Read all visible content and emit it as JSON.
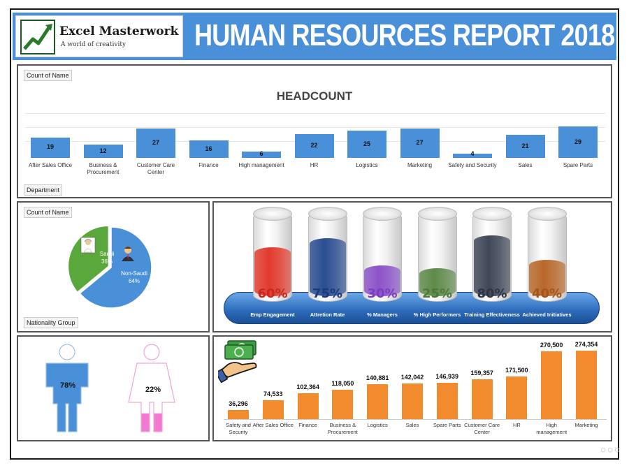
{
  "header": {
    "brand_name": "Excel Masterwork",
    "brand_tagline": "A world of creativity",
    "title": "HUMAN RESOURCES REPORT 2018",
    "logo_icon": "growth-chart-icon"
  },
  "headcount": {
    "field_label": "Count of Name",
    "axis_label": "Department",
    "chart_data": {
      "type": "bar",
      "title": "HEADCOUNT",
      "categories": [
        "After Sales Office",
        "Business & Procurement",
        "Customer Care Center",
        "Finance",
        "High management",
        "HR",
        "Logistics",
        "Marketing",
        "Safety and Security",
        "Sales",
        "Spare Parts"
      ],
      "values": [
        19,
        12,
        27,
        16,
        6,
        22,
        25,
        27,
        4,
        21,
        29
      ],
      "color": "#4a90d9"
    }
  },
  "nationality": {
    "field_label": "Count of Name",
    "axis_label": "Nationality Group",
    "chart_data": {
      "type": "pie",
      "categories": [
        "Saudi",
        "Non-Saudi"
      ],
      "values": [
        36,
        64
      ],
      "labels": [
        "36%",
        "64%"
      ],
      "colors": [
        "#5aa83c",
        "#4a90d9"
      ]
    }
  },
  "kpis": {
    "items": [
      {
        "label": "Emp Engagement",
        "value": "60%",
        "color": "#e23b2e",
        "text_color": "#c8281d"
      },
      {
        "label": "Attretion Rate",
        "value": "75%",
        "color": "#2a4d91",
        "text_color": "#1d3b7a"
      },
      {
        "label": "% Managers",
        "value": "30%",
        "color": "#8c53c9",
        "text_color": "#7a3fbf"
      },
      {
        "label": "% High Performers",
        "value": "25%",
        "color": "#5e8a4a",
        "text_color": "#4d7a3a"
      },
      {
        "label": "Training Effectiveness",
        "value": "80%",
        "color": "#3f4757",
        "text_color": "#2f3645"
      },
      {
        "label": "Achieved Initiatives",
        "value": "40%",
        "color": "#b8682a",
        "text_color": "#a3561c"
      }
    ]
  },
  "gender": {
    "male_pct": "78%",
    "female_pct": "22%",
    "male_color": "#4a90d9",
    "female_color": "#f27ad0",
    "male_fill": 0.78,
    "female_fill": 0.22
  },
  "salaries": {
    "icon": "money-hand-icon",
    "chart_data": {
      "type": "bar",
      "categories": [
        "Safety and Security",
        "After Sales Office",
        "Finance",
        "Business & Procurement",
        "Logistics",
        "Sales",
        "Spare Parts",
        "Customer Care Center",
        "HR",
        "High management",
        "Marketing"
      ],
      "values": [
        36296,
        74533,
        102364,
        118050,
        140881,
        142042,
        146939,
        159357,
        171500,
        270500,
        274354
      ],
      "labels": [
        "36,296",
        "74,533",
        "102,364",
        "118,050",
        "140,881",
        "142,042",
        "146,939",
        "159,357",
        "171,500",
        "270,500",
        "274,354"
      ],
      "color": "#f28a2e"
    }
  }
}
